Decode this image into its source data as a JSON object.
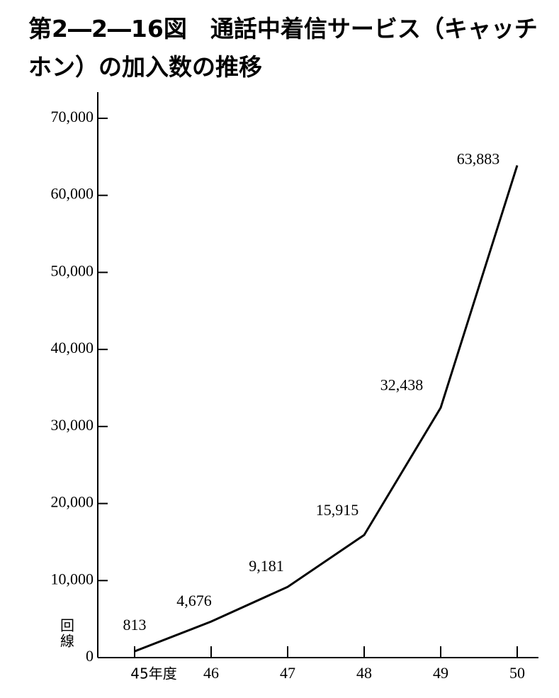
{
  "chart_data": {
    "type": "line",
    "title": "第2―2―16図　通話中着信サービス（キャッチホン）の加入数の推移",
    "y_label": "回線",
    "categories": [
      "45年度",
      "46",
      "47",
      "48",
      "49",
      "50"
    ],
    "series": [
      {
        "color": "#000000",
        "values": [
          813,
          4676,
          9181,
          15915,
          32438,
          63883
        ],
        "value_labels": [
          "813",
          "4,676",
          "9,181",
          "15,915",
          "32,438",
          "63,883"
        ]
      }
    ],
    "ylim": [
      0,
      73400
    ],
    "yticks": [
      0,
      {
        "value": 10000,
        "label": "10,000"
      },
      {
        "value": 20000,
        "label": "20,000"
      },
      {
        "value": 30000,
        "label": "30,000"
      },
      {
        "value": 40000,
        "label": "40,000"
      },
      {
        "value": 50000,
        "label": "50,000"
      },
      {
        "value": 60000,
        "label": "60,000"
      },
      {
        "value": 70000,
        "label": "70,000"
      }
    ]
  }
}
